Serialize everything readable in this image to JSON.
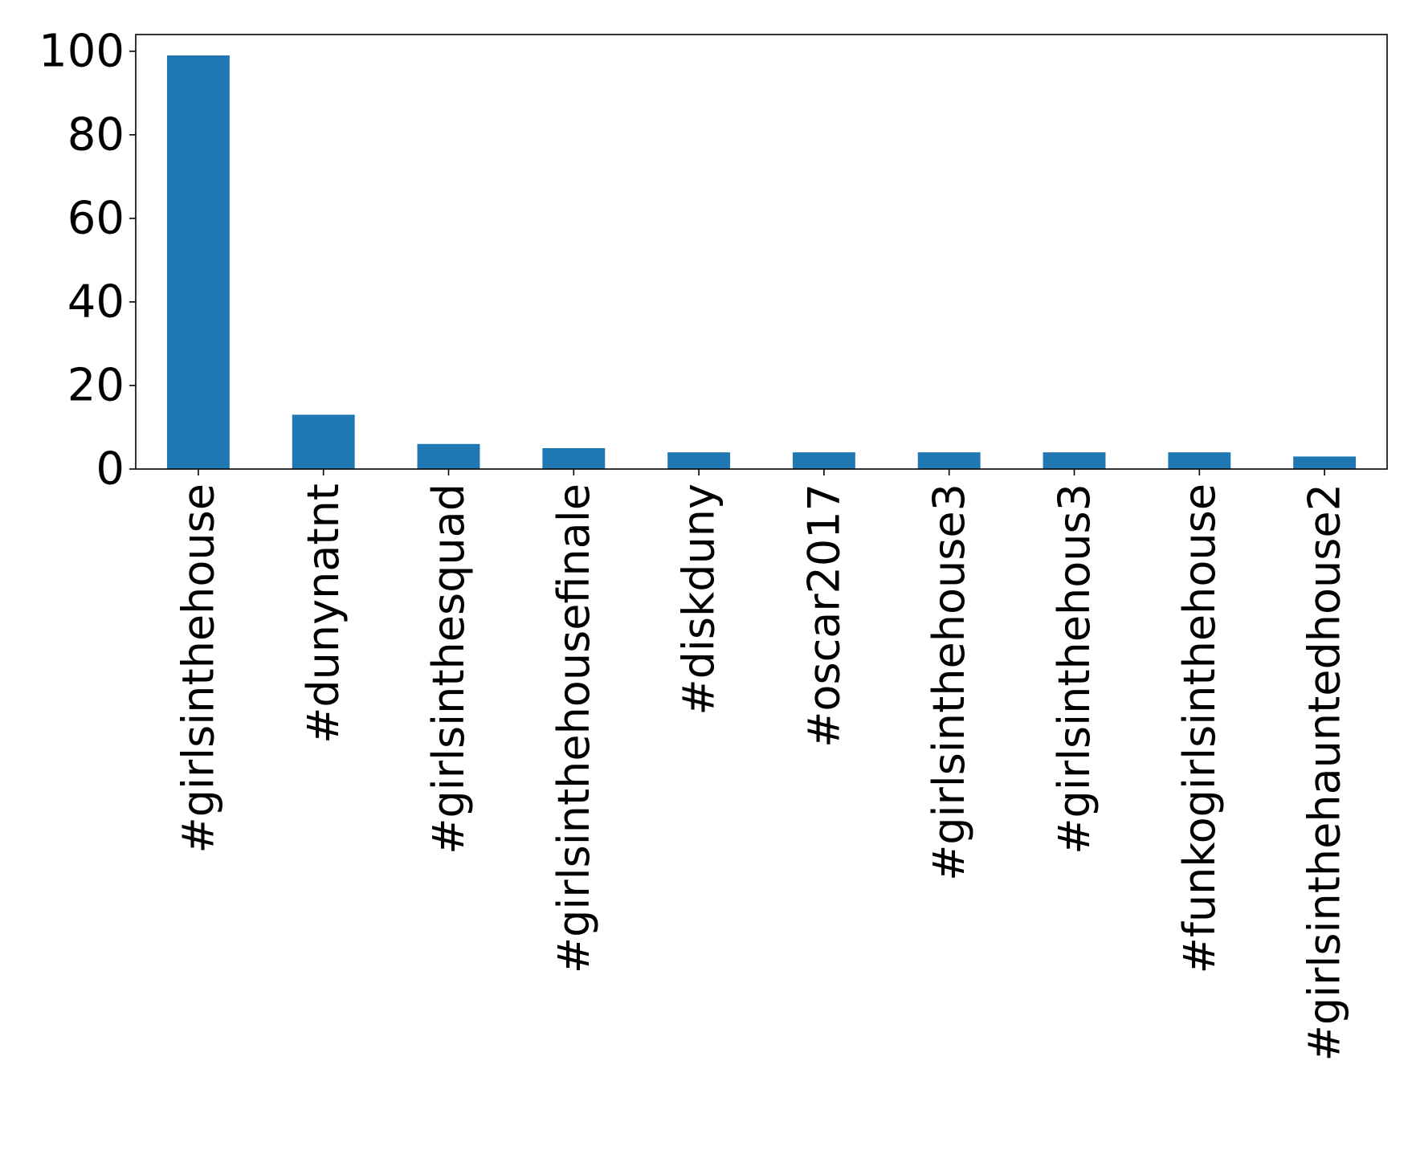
{
  "chart_data": {
    "type": "bar",
    "title": "",
    "xlabel": "",
    "ylabel": "",
    "categories": [
      "#girlsinthehouse",
      "#dunynatnt",
      "#girlsinthesquad",
      "#girlsinthehousefinale",
      "#diskduny",
      "#oscar2017",
      "#girlsinthehouse3",
      "#girlsinthehous3",
      "#funkogirlsinthehouse",
      "#girlsinthehauntedhouse2"
    ],
    "values": [
      99,
      13,
      6,
      5,
      4,
      4,
      4,
      4,
      4,
      3
    ],
    "ylim": [
      0,
      104
    ],
    "yticks": [
      0,
      20,
      40,
      60,
      80,
      100
    ],
    "grid": false,
    "legend": "none",
    "bar_color": "#1f77b4"
  }
}
